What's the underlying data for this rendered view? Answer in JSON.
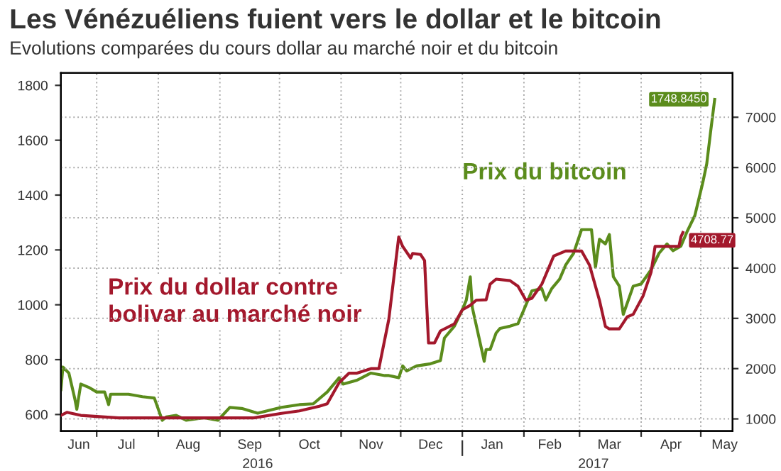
{
  "chart_data": {
    "type": "line",
    "title": "Les Vénézuéliens fuient vers le dollar et le bitcoin",
    "subtitle": "Evolutions comparées du cours dollar au marché noir et du bitcoin",
    "series": [
      {
        "name": "Prix du bitcoin",
        "color": "#5b8c1c",
        "axis": "y",
        "x": [
          "2016-06-13",
          "2016-06-14",
          "2016-06-17",
          "2016-06-20",
          "2016-06-21",
          "2016-06-23",
          "2016-06-27",
          "2016-07-01",
          "2016-07-05",
          "2016-07-07",
          "2016-07-08",
          "2016-07-17",
          "2016-07-24",
          "2016-07-30",
          "2016-08-03",
          "2016-08-05",
          "2016-08-10",
          "2016-08-15",
          "2016-08-24",
          "2016-08-31",
          "2016-09-06",
          "2016-09-12",
          "2016-09-20",
          "2016-10-02",
          "2016-10-11",
          "2016-10-18",
          "2016-10-25",
          "2016-10-31",
          "2016-11-02",
          "2016-11-09",
          "2016-11-16",
          "2016-11-23",
          "2016-11-25",
          "2016-11-27",
          "2016-11-30",
          "2016-12-02",
          "2016-12-04",
          "2016-12-09",
          "2016-12-16",
          "2016-12-21",
          "2016-12-23",
          "2016-12-28",
          "2017-01-01",
          "2017-01-03",
          "2017-01-05",
          "2017-01-06",
          "2017-01-11",
          "2017-01-12",
          "2017-01-13",
          "2017-01-15",
          "2017-01-18",
          "2017-01-20",
          "2017-01-25",
          "2017-01-29",
          "2017-02-01",
          "2017-02-05",
          "2017-02-10",
          "2017-02-12",
          "2017-02-15",
          "2017-02-19",
          "2017-02-22",
          "2017-02-26",
          "2017-03-02",
          "2017-03-07",
          "2017-03-09",
          "2017-03-11",
          "2017-03-14",
          "2017-03-16",
          "2017-03-18",
          "2017-03-21",
          "2017-03-23",
          "2017-03-28",
          "2017-04-01",
          "2017-04-06",
          "2017-04-10",
          "2017-04-14",
          "2017-04-17",
          "2017-04-21",
          "2017-04-24",
          "2017-04-28",
          "2017-05-02",
          "2017-05-04",
          "2017-05-06",
          "2017-05-08"
        ],
        "values": [
          691,
          773,
          751,
          657,
          619,
          711,
          699,
          682,
          682,
          636,
          674,
          674,
          665,
          660,
          579,
          591,
          597,
          579,
          588,
          579,
          626,
          622,
          605,
          626,
          636,
          639,
          682,
          734,
          711,
          725,
          751,
          742,
          742,
          739,
          734,
          777,
          759,
          777,
          785,
          797,
          879,
          922,
          982,
          1017,
          1102,
          991,
          828,
          794,
          837,
          837,
          897,
          914,
          922,
          931,
          982,
          1051,
          1059,
          1017,
          1059,
          1094,
          1145,
          1188,
          1274,
          1274,
          1137,
          1239,
          1222,
          1256,
          1102,
          1068,
          965,
          1068,
          1076,
          1128,
          1188,
          1222,
          1197,
          1214,
          1265,
          1325,
          1445,
          1514,
          1634,
          1748.845
        ],
        "value_labels": [
          null,
          null,
          null,
          null,
          null,
          null,
          null,
          null,
          null,
          null,
          null,
          null,
          null,
          null,
          null,
          null,
          null,
          null,
          null,
          null,
          null,
          null,
          null,
          null,
          null,
          null,
          null,
          null,
          null,
          null,
          null,
          null,
          null,
          null,
          null,
          null,
          null,
          null,
          null,
          null,
          null,
          null,
          null,
          null,
          null,
          null,
          null,
          null,
          null,
          null,
          null,
          null,
          null,
          null,
          null,
          null,
          null,
          null,
          null,
          null,
          null,
          null,
          null,
          null,
          null,
          null,
          null,
          null,
          null,
          null,
          null,
          null,
          null,
          null,
          null,
          null,
          null,
          null,
          null,
          null,
          null,
          null,
          null,
          "1748.8450"
        ]
      },
      {
        "name": "Prix du dollar contre bolivar au marché noir",
        "color": "#a3182c",
        "axis": "y2",
        "x": [
          "2016-06-13",
          "2016-06-16",
          "2016-06-23",
          "2016-07-12",
          "2016-09-18",
          "2016-10-02",
          "2016-10-11",
          "2016-10-21",
          "2016-10-25",
          "2016-10-31",
          "2016-11-05",
          "2016-11-09",
          "2016-11-16",
          "2016-11-20",
          "2016-11-25",
          "2016-11-30",
          "2016-12-02",
          "2016-12-06",
          "2016-12-07",
          "2016-12-11",
          "2016-12-13",
          "2016-12-15",
          "2016-12-18",
          "2016-12-21",
          "2016-12-28",
          "2017-01-01",
          "2017-01-05",
          "2017-01-08",
          "2017-01-13",
          "2017-01-15",
          "2017-01-18",
          "2017-01-25",
          "2017-01-29",
          "2017-02-02",
          "2017-02-05",
          "2017-02-10",
          "2017-02-16",
          "2017-02-22",
          "2017-03-02",
          "2017-03-06",
          "2017-03-11",
          "2017-03-14",
          "2017-03-16",
          "2017-03-21",
          "2017-03-25",
          "2017-03-28",
          "2017-04-02",
          "2017-04-06",
          "2017-04-08",
          "2017-04-15",
          "2017-04-20",
          "2017-04-21",
          "2017-04-22"
        ],
        "values": [
          1070,
          1130,
          1070,
          1020,
          1020,
          1110,
          1160,
          1250,
          1300,
          1720,
          1910,
          1910,
          2000,
          2000,
          2980,
          4620,
          4430,
          4200,
          4290,
          4270,
          4150,
          2510,
          2510,
          2750,
          2890,
          3170,
          3260,
          3360,
          3370,
          3680,
          3780,
          3750,
          3640,
          3360,
          3400,
          3680,
          4240,
          4340,
          4340,
          4060,
          3360,
          2840,
          2790,
          2790,
          3030,
          3080,
          3450,
          3920,
          4430,
          4430,
          4430,
          4620,
          4708.77
        ],
        "value_labels": [
          null,
          null,
          null,
          null,
          null,
          null,
          null,
          null,
          null,
          null,
          null,
          null,
          null,
          null,
          null,
          null,
          null,
          null,
          null,
          null,
          null,
          null,
          null,
          null,
          null,
          null,
          null,
          null,
          null,
          null,
          null,
          null,
          null,
          null,
          null,
          null,
          null,
          null,
          null,
          null,
          null,
          null,
          null,
          null,
          null,
          null,
          null,
          null,
          null,
          null,
          null,
          null,
          "4708.77"
        ]
      }
    ],
    "xlim": [
      "2016-06-13",
      "2017-05-17"
    ],
    "xticks": [
      {
        "value": "2016-06-22",
        "label": "Jun"
      },
      {
        "value": "2016-07-01",
        "label": null
      },
      {
        "value": "2016-07-16",
        "label": "Jul"
      },
      {
        "value": "2016-08-01",
        "label": null
      },
      {
        "value": "2016-08-16",
        "label": "Aug"
      },
      {
        "value": "2016-09-01",
        "label": null
      },
      {
        "value": "2016-09-16",
        "label": "Sep"
      },
      {
        "value": "2016-10-01",
        "label": null
      },
      {
        "value": "2016-10-16",
        "label": "Oct"
      },
      {
        "value": "2016-11-01",
        "label": null
      },
      {
        "value": "2016-11-16",
        "label": "Nov"
      },
      {
        "value": "2016-12-01",
        "label": null
      },
      {
        "value": "2016-12-16",
        "label": "Dec"
      },
      {
        "value": "2017-01-01",
        "label": null
      },
      {
        "value": "2017-01-16",
        "label": "Jan"
      },
      {
        "value": "2017-02-01",
        "label": null
      },
      {
        "value": "2017-02-14",
        "label": "Feb"
      },
      {
        "value": "2017-03-01",
        "label": null
      },
      {
        "value": "2017-03-16",
        "label": "Mar"
      },
      {
        "value": "2017-04-01",
        "label": null
      },
      {
        "value": "2017-04-16",
        "label": "Apr"
      },
      {
        "value": "2017-05-01",
        "label": null
      },
      {
        "value": "2017-05-13",
        "label": "May"
      }
    ],
    "x2lim": [
      "2016-06-13",
      "2017-05-17"
    ],
    "x2ticks": [
      {
        "value": "2016-09-20",
        "label": "2016"
      },
      {
        "value": "2017-01-01",
        "label": null
      },
      {
        "value": "2017-03-08",
        "label": "2017"
      }
    ],
    "ylim": [
      540,
      1845
    ],
    "yticks": [
      600,
      800,
      1000,
      1200,
      1400,
      1600,
      1800
    ],
    "y2lim": [
      760,
      7880
    ],
    "y2ticks": [
      1000,
      2000,
      3000,
      4000,
      5000,
      6000,
      7000
    ],
    "grid": true,
    "legend": false,
    "marker": "none",
    "line_style": "solid"
  }
}
